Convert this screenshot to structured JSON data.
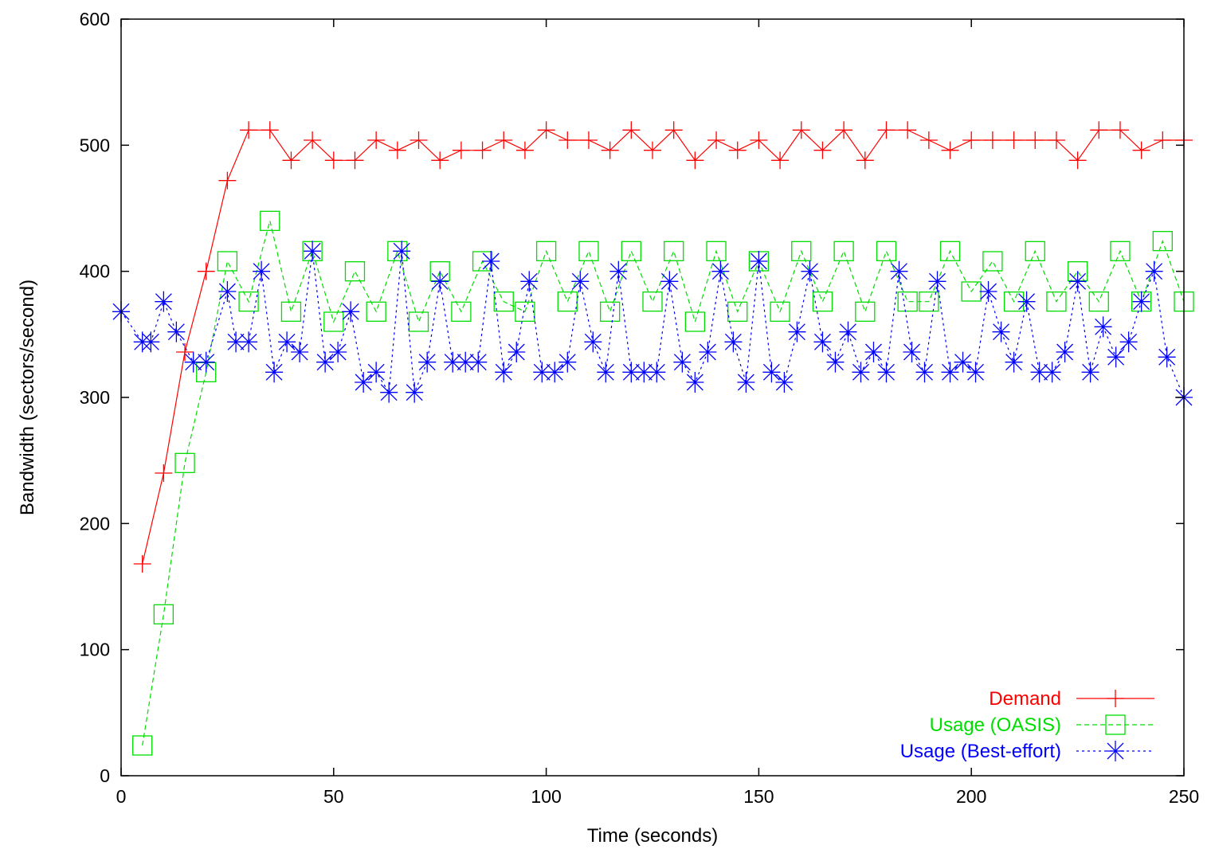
{
  "chart_data": {
    "type": "line",
    "title": "",
    "xlabel": "Time (seconds)",
    "ylabel": "Bandwidth (sectors/second)",
    "xlim": [
      0,
      250
    ],
    "ylim": [
      0,
      600
    ],
    "xticks": [
      0,
      50,
      100,
      150,
      200,
      250
    ],
    "yticks": [
      0,
      100,
      200,
      300,
      400,
      500,
      600
    ],
    "grid": false,
    "legend_position": "bottom-right",
    "series": [
      {
        "name": "Demand",
        "color": "#ff0000",
        "marker": "plus",
        "line": "solid",
        "x": [
          5,
          10,
          15,
          20,
          25,
          30,
          35,
          40,
          45,
          50,
          55,
          60,
          65,
          70,
          75,
          80,
          85,
          90,
          95,
          100,
          105,
          110,
          115,
          120,
          125,
          130,
          135,
          140,
          145,
          150,
          155,
          160,
          165,
          170,
          175,
          180,
          185,
          190,
          195,
          200,
          205,
          210,
          215,
          220,
          225,
          230,
          235,
          240,
          245,
          250
        ],
        "y": [
          168,
          240,
          336,
          400,
          472,
          512,
          512,
          488,
          504,
          488,
          488,
          504,
          496,
          504,
          488,
          496,
          496,
          504,
          496,
          512,
          504,
          504,
          496,
          512,
          496,
          512,
          488,
          504,
          496,
          504,
          488,
          512,
          496,
          512,
          488,
          512,
          512,
          504,
          496,
          504,
          504,
          504,
          504,
          504,
          488,
          512,
          512,
          496,
          504,
          504
        ]
      },
      {
        "name": "Usage (OASIS)",
        "color": "#00dd00",
        "marker": "square",
        "line": "dashed",
        "x": [
          5,
          10,
          15,
          20,
          25,
          30,
          35,
          40,
          45,
          50,
          55,
          60,
          65,
          70,
          75,
          80,
          85,
          90,
          95,
          100,
          105,
          110,
          115,
          120,
          125,
          130,
          135,
          140,
          145,
          150,
          155,
          160,
          165,
          170,
          175,
          180,
          185,
          190,
          195,
          200,
          205,
          210,
          215,
          220,
          225,
          230,
          235,
          240,
          245,
          250
        ],
        "y": [
          24,
          128,
          248,
          320,
          408,
          376,
          440,
          368,
          416,
          360,
          400,
          368,
          416,
          360,
          400,
          368,
          408,
          376,
          368,
          416,
          376,
          416,
          368,
          416,
          376,
          416,
          360,
          416,
          368,
          408,
          368,
          416,
          376,
          416,
          368,
          416,
          376,
          376,
          416,
          384,
          408,
          376,
          416,
          376,
          400,
          376,
          416,
          376,
          424,
          376
        ]
      },
      {
        "name": "Usage (Best-effort)",
        "color": "#0000ff",
        "marker": "star",
        "line": "dotted",
        "x": [
          0,
          5,
          7,
          10,
          13,
          17,
          20,
          25,
          27,
          30,
          33,
          36,
          39,
          42,
          45,
          48,
          51,
          54,
          57,
          60,
          63,
          66,
          69,
          72,
          75,
          78,
          81,
          84,
          87,
          90,
          93,
          96,
          99,
          102,
          105,
          108,
          111,
          114,
          117,
          120,
          123,
          126,
          129,
          132,
          135,
          138,
          141,
          144,
          147,
          150,
          153,
          156,
          159,
          162,
          165,
          168,
          171,
          174,
          177,
          180,
          183,
          186,
          189,
          192,
          195,
          198,
          201,
          204,
          207,
          210,
          213,
          216,
          219,
          222,
          225,
          228,
          231,
          234,
          237,
          240,
          243,
          246,
          250
        ],
        "y": [
          368,
          344,
          344,
          376,
          352,
          328,
          328,
          384,
          344,
          344,
          400,
          320,
          344,
          336,
          416,
          328,
          336,
          368,
          312,
          320,
          304,
          416,
          304,
          328,
          392,
          328,
          328,
          328,
          408,
          320,
          336,
          392,
          320,
          320,
          328,
          392,
          344,
          320,
          400,
          320,
          320,
          320,
          392,
          328,
          312,
          336,
          400,
          344,
          312,
          408,
          320,
          312,
          352,
          400,
          344,
          328,
          352,
          320,
          336,
          320,
          400,
          336,
          320,
          392,
          320,
          328,
          320,
          384,
          352,
          328,
          376,
          320,
          320,
          336,
          392,
          320,
          356,
          332,
          344,
          376,
          400,
          332,
          300
        ]
      }
    ]
  }
}
